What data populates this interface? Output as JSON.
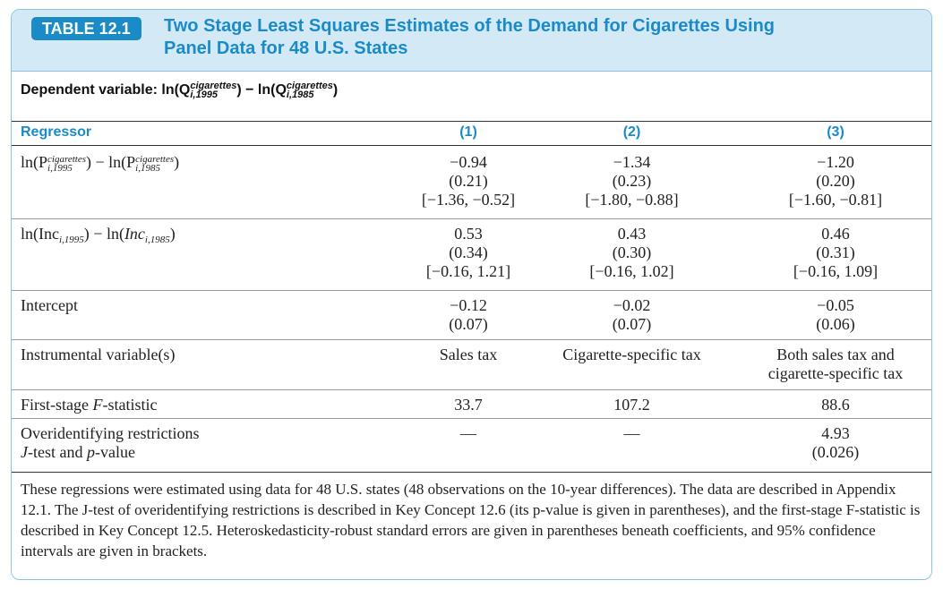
{
  "table": {
    "badge": "TABLE 12.1",
    "title": "Two Stage Least Squares Estimates of the Demand for Cigarettes Using Panel Data for 48 U.S. States",
    "dependent_variable": {
      "prefix": "Dependent variable: ln(Q",
      "sup": "cigarettes",
      "sub1": "i,1995",
      "sub2": "i,1985",
      "mid": ") − ln(Q",
      "suffix": ")"
    },
    "columns": {
      "regressor": "Regressor",
      "col1": "(1)",
      "col2": "(2)",
      "col3": "(3)"
    },
    "rows": [
      {
        "label": "ln(P",
        "label_sup": "cigarettes",
        "label_sub1": "i,1995",
        "label_sub2": "i,1985",
        "c1": [
          "−0.94",
          "(0.21)",
          "[−1.36, −0.52]"
        ],
        "c2": [
          "−1.34",
          "(0.23)",
          "[−1.80, −0.88]"
        ],
        "c3": [
          "−1.20",
          "(0.20)",
          "[−1.60, −0.81]"
        ]
      },
      {
        "label": "ln(Inc",
        "label_sub1": "i,1995",
        "label_sub2": "i,1985",
        "c1": [
          "0.53",
          "(0.34)",
          "[−0.16, 1.21]"
        ],
        "c2": [
          "0.43",
          "(0.30)",
          "[−0.16, 1.02]"
        ],
        "c3": [
          "0.46",
          "(0.31)",
          "[−0.16, 1.09]"
        ]
      },
      {
        "label": "Intercept",
        "c1": [
          "−0.12",
          "(0.07)"
        ],
        "c2": [
          "−0.02",
          "(0.07)"
        ],
        "c3": [
          "−0.05",
          "(0.06)"
        ]
      },
      {
        "label": "Instrumental variable(s)",
        "c1": [
          "Sales tax"
        ],
        "c2": [
          "Cigarette-specific tax"
        ],
        "c3": [
          "Both sales tax and",
          "cigarette-specific tax"
        ]
      },
      {
        "label": "First-stage F-statistic",
        "c1": [
          "33.7"
        ],
        "c2": [
          "107.2"
        ],
        "c3": [
          "88.6"
        ]
      },
      {
        "label_lines": [
          "Overidentifying restrictions",
          "J-test and p-value"
        ],
        "c1": [
          "—"
        ],
        "c2": [
          "—"
        ],
        "c3": [
          "4.93",
          "(0.026)"
        ]
      }
    ],
    "note": "These regressions were estimated using data for 48 U.S. states (48 observations on the 10-year differences). The data are described in Appendix 12.1. The J-test of overidentifying restrictions is described in Key Concept 12.6 (its p-value is given in parentheses), and the first-stage F-statistic is described in Key Concept 12.5. Heteroskedasticity-robust standard errors are given in parentheses beneath coefficients, and 95% confidence intervals are given in brackets."
  },
  "colors": {
    "accent": "#1b8bc8",
    "header_bg": "#d3e9f6",
    "border": "#8ec3df"
  }
}
